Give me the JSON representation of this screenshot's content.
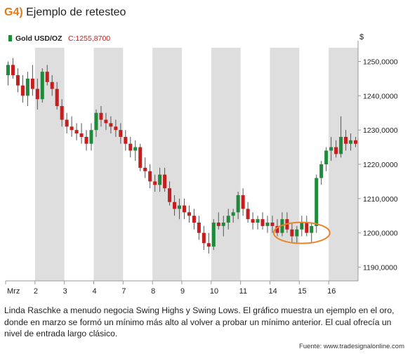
{
  "header": {
    "number": "G4)",
    "title": "Ejemplo de retesteo"
  },
  "chart_data": {
    "type": "candlestick",
    "legend": {
      "symbol": "Gold USD/OZ",
      "close_prefix": "C:",
      "close_value": "1255,8700"
    },
    "y_unit": "$",
    "ylim": [
      1186,
      1254
    ],
    "y_ticks": [
      {
        "v": 1250,
        "label": "1250,0000"
      },
      {
        "v": 1240,
        "label": "1240,0000"
      },
      {
        "v": 1230,
        "label": "1230,0000"
      },
      {
        "v": 1220,
        "label": "1220,0000"
      },
      {
        "v": 1210,
        "label": "1210,0000"
      },
      {
        "v": 1200,
        "label": "1200,0000"
      },
      {
        "v": 1190,
        "label": "1190,0000"
      }
    ],
    "x_ticks": [
      "Mrz",
      "2",
      "3",
      "4",
      "7",
      "8",
      "9",
      "10",
      "11",
      "14",
      "15",
      "16"
    ],
    "bull_color": "#1f8a3b",
    "bear_color": "#c41e1e",
    "shade_color": "#dedede",
    "highlight_color": "#e8842a",
    "candles": [
      {
        "o": 1246,
        "h": 1250,
        "l": 1243,
        "c": 1249
      },
      {
        "o": 1249,
        "h": 1251,
        "l": 1245,
        "c": 1246
      },
      {
        "o": 1246,
        "h": 1248,
        "l": 1241,
        "c": 1243
      },
      {
        "o": 1243,
        "h": 1246,
        "l": 1238,
        "c": 1240
      },
      {
        "o": 1240,
        "h": 1247,
        "l": 1237,
        "c": 1245
      },
      {
        "o": 1245,
        "h": 1249,
        "l": 1240,
        "c": 1242
      },
      {
        "o": 1242,
        "h": 1245,
        "l": 1236,
        "c": 1239
      },
      {
        "o": 1239,
        "h": 1248,
        "l": 1238,
        "c": 1247
      },
      {
        "o": 1247,
        "h": 1249,
        "l": 1243,
        "c": 1244
      },
      {
        "o": 1244,
        "h": 1246,
        "l": 1240,
        "c": 1242
      },
      {
        "o": 1242,
        "h": 1244,
        "l": 1236,
        "c": 1237
      },
      {
        "o": 1237,
        "h": 1239,
        "l": 1231,
        "c": 1233
      },
      {
        "o": 1233,
        "h": 1235,
        "l": 1229,
        "c": 1231
      },
      {
        "o": 1231,
        "h": 1234,
        "l": 1228,
        "c": 1230
      },
      {
        "o": 1230,
        "h": 1232,
        "l": 1227,
        "c": 1229
      },
      {
        "o": 1229,
        "h": 1232,
        "l": 1226,
        "c": 1228
      },
      {
        "o": 1228,
        "h": 1230,
        "l": 1224,
        "c": 1226
      },
      {
        "o": 1226,
        "h": 1232,
        "l": 1224,
        "c": 1230
      },
      {
        "o": 1230,
        "h": 1236,
        "l": 1228,
        "c": 1235
      },
      {
        "o": 1235,
        "h": 1237,
        "l": 1231,
        "c": 1233
      },
      {
        "o": 1233,
        "h": 1235,
        "l": 1230,
        "c": 1232
      },
      {
        "o": 1232,
        "h": 1234,
        "l": 1229,
        "c": 1231
      },
      {
        "o": 1231,
        "h": 1233,
        "l": 1228,
        "c": 1230
      },
      {
        "o": 1230,
        "h": 1232,
        "l": 1226,
        "c": 1228
      },
      {
        "o": 1228,
        "h": 1230,
        "l": 1224,
        "c": 1226
      },
      {
        "o": 1226,
        "h": 1228,
        "l": 1222,
        "c": 1224
      },
      {
        "o": 1224,
        "h": 1227,
        "l": 1221,
        "c": 1225
      },
      {
        "o": 1225,
        "h": 1226,
        "l": 1218,
        "c": 1219
      },
      {
        "o": 1219,
        "h": 1222,
        "l": 1216,
        "c": 1218
      },
      {
        "o": 1218,
        "h": 1220,
        "l": 1213,
        "c": 1215
      },
      {
        "o": 1215,
        "h": 1217,
        "l": 1212,
        "c": 1214
      },
      {
        "o": 1214,
        "h": 1219,
        "l": 1212,
        "c": 1217
      },
      {
        "o": 1217,
        "h": 1219,
        "l": 1212,
        "c": 1213
      },
      {
        "o": 1213,
        "h": 1215,
        "l": 1208,
        "c": 1209
      },
      {
        "o": 1209,
        "h": 1211,
        "l": 1205,
        "c": 1207
      },
      {
        "o": 1207,
        "h": 1210,
        "l": 1204,
        "c": 1208
      },
      {
        "o": 1208,
        "h": 1210,
        "l": 1204,
        "c": 1206
      },
      {
        "o": 1206,
        "h": 1208,
        "l": 1203,
        "c": 1205
      },
      {
        "o": 1205,
        "h": 1207,
        "l": 1201,
        "c": 1203
      },
      {
        "o": 1203,
        "h": 1205,
        "l": 1198,
        "c": 1200
      },
      {
        "o": 1200,
        "h": 1202,
        "l": 1195,
        "c": 1197
      },
      {
        "o": 1197,
        "h": 1200,
        "l": 1194,
        "c": 1196
      },
      {
        "o": 1196,
        "h": 1204,
        "l": 1195,
        "c": 1203
      },
      {
        "o": 1203,
        "h": 1206,
        "l": 1201,
        "c": 1202
      },
      {
        "o": 1202,
        "h": 1205,
        "l": 1199,
        "c": 1203
      },
      {
        "o": 1203,
        "h": 1207,
        "l": 1201,
        "c": 1205
      },
      {
        "o": 1205,
        "h": 1207,
        "l": 1203,
        "c": 1206
      },
      {
        "o": 1206,
        "h": 1212,
        "l": 1204,
        "c": 1211
      },
      {
        "o": 1211,
        "h": 1213,
        "l": 1205,
        "c": 1207
      },
      {
        "o": 1207,
        "h": 1209,
        "l": 1203,
        "c": 1204
      },
      {
        "o": 1204,
        "h": 1206,
        "l": 1201,
        "c": 1203
      },
      {
        "o": 1203,
        "h": 1205,
        "l": 1201,
        "c": 1204
      },
      {
        "o": 1204,
        "h": 1206,
        "l": 1201,
        "c": 1202
      },
      {
        "o": 1202,
        "h": 1205,
        "l": 1200,
        "c": 1203
      },
      {
        "o": 1203,
        "h": 1205,
        "l": 1200,
        "c": 1202
      },
      {
        "o": 1202,
        "h": 1204,
        "l": 1199,
        "c": 1200
      },
      {
        "o": 1200,
        "h": 1206,
        "l": 1199,
        "c": 1204
      },
      {
        "o": 1204,
        "h": 1206,
        "l": 1200,
        "c": 1201
      },
      {
        "o": 1201,
        "h": 1203,
        "l": 1197,
        "c": 1199
      },
      {
        "o": 1199,
        "h": 1202,
        "l": 1197,
        "c": 1201
      },
      {
        "o": 1201,
        "h": 1205,
        "l": 1199,
        "c": 1203
      },
      {
        "o": 1203,
        "h": 1205,
        "l": 1199,
        "c": 1200
      },
      {
        "o": 1200,
        "h": 1203,
        "l": 1197,
        "c": 1202
      },
      {
        "o": 1202,
        "h": 1217,
        "l": 1200,
        "c": 1216
      },
      {
        "o": 1216,
        "h": 1221,
        "l": 1214,
        "c": 1220
      },
      {
        "o": 1220,
        "h": 1225,
        "l": 1218,
        "c": 1224
      },
      {
        "o": 1224,
        "h": 1228,
        "l": 1221,
        "c": 1225
      },
      {
        "o": 1225,
        "h": 1227,
        "l": 1222,
        "c": 1223
      },
      {
        "o": 1223,
        "h": 1234,
        "l": 1222,
        "c": 1228
      },
      {
        "o": 1228,
        "h": 1230,
        "l": 1224,
        "c": 1226
      },
      {
        "o": 1226,
        "h": 1229,
        "l": 1224,
        "c": 1227
      },
      {
        "o": 1227,
        "h": 1228,
        "l": 1225,
        "c": 1226
      }
    ]
  },
  "caption": "Linda Raschke a menudo negocia Swing Highs y Swing Lows. El gráfico muestra un ejemplo en el oro, donde en marzo se formó un mínimo más alto al volver a probar un mínimo anterior. El cual ofrecía un nivel de entrada largo clásico.",
  "source": "Fuente: www.tradesignalonline.com"
}
